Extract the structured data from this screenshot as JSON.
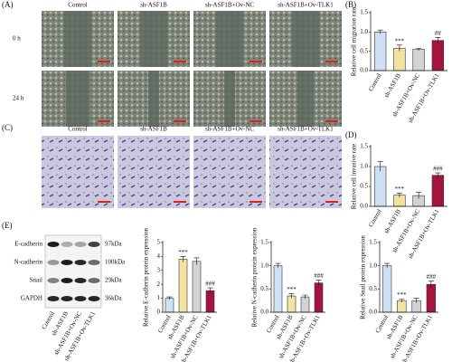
{
  "panel_labels": [
    "(A)",
    "(B)",
    "(C)",
    "(D)",
    "(E)"
  ],
  "groups": [
    "Control",
    "sh-ASF1B",
    "sh-ASF1B+Ov-NC",
    "sh-ASF1B+Ov-TLK1"
  ],
  "time_points": [
    "0 h",
    "24 h"
  ],
  "blot": {
    "proteins": [
      "E-cadherin",
      "N-cadherin",
      "Snail",
      "GAPDH"
    ],
    "sizes": [
      "97kDa",
      "100kDa",
      "29kDa",
      "36kDa"
    ]
  },
  "chart_data": [
    {
      "type": "bar",
      "ylabel": "Relative cell migration rate",
      "categories": [
        "Control",
        "sh-ASF1B",
        "sh-ASF1B+Ov-NC",
        "sh-ASF1B+Ov-TLK1"
      ],
      "values": [
        1.0,
        0.58,
        0.55,
        0.78
      ],
      "errors": [
        0.05,
        0.08,
        0.03,
        0.08
      ],
      "annotations": [
        null,
        "***",
        null,
        "##"
      ],
      "colors": [
        "#cfe0f5",
        "#f3e3a0",
        "#d3d3d3",
        "#a5143f"
      ],
      "ylim": [
        0,
        1.5
      ],
      "yticks": [
        {
          "value": 0,
          "label": "0.0"
        },
        {
          "value": 0.5,
          "label": "0.5"
        },
        {
          "value": 1,
          "label": "1.0"
        },
        {
          "value": 1.5,
          "label": "1.5"
        }
      ]
    },
    {
      "type": "bar",
      "ylabel": "Relative cell invasive rate",
      "categories": [
        "Control",
        "sh-ASF1B",
        "sh-ASF1B+Ov-NC",
        "sh-ASF1B+Ov-TLK1"
      ],
      "values": [
        1.0,
        0.28,
        0.27,
        0.78
      ],
      "errors": [
        0.12,
        0.05,
        0.08,
        0.06
      ],
      "annotations": [
        null,
        "***",
        null,
        "###"
      ],
      "colors": [
        "#cfe0f5",
        "#f3e3a0",
        "#d3d3d3",
        "#a5143f"
      ],
      "ylim": [
        0,
        1.5
      ],
      "yticks": [
        {
          "value": 0,
          "label": "0.0"
        },
        {
          "value": 0.5,
          "label": "0.5"
        },
        {
          "value": 1,
          "label": "1.0"
        },
        {
          "value": 1.5,
          "label": "1.5"
        }
      ]
    },
    {
      "type": "bar",
      "ylabel": "Relative E-cadherin protein expression",
      "categories": [
        "Control",
        "sh-ASF1B",
        "sh-ASF1B+Ov-NC",
        "sh-ASF1B+Ov-TLK1"
      ],
      "values": [
        1.0,
        3.8,
        3.65,
        1.55
      ],
      "errors": [
        0.1,
        0.2,
        0.25,
        0.2
      ],
      "annotations": [
        null,
        "***",
        null,
        "###"
      ],
      "colors": [
        "#cfe0f5",
        "#f3e3a0",
        "#d3d3d3",
        "#a5143f"
      ],
      "ylim": [
        0,
        5
      ],
      "yticks": [
        0,
        1,
        2,
        3,
        4,
        5
      ]
    },
    {
      "type": "bar",
      "ylabel": "Relative N-cadherin protein expression",
      "categories": [
        "Control",
        "sh-ASF1B",
        "sh-ASF1B+Ov-NC",
        "sh-ASF1B+Ov-TLK1"
      ],
      "values": [
        1.0,
        0.35,
        0.33,
        0.63
      ],
      "errors": [
        0.05,
        0.05,
        0.04,
        0.06
      ],
      "annotations": [
        null,
        "***",
        null,
        "###"
      ],
      "colors": [
        "#cfe0f5",
        "#f3e3a0",
        "#d3d3d3",
        "#a5143f"
      ],
      "ylim": [
        0,
        1.5
      ],
      "yticks": [
        {
          "value": 0,
          "label": "0.0"
        },
        {
          "value": 0.5,
          "label": "0.5"
        },
        {
          "value": 1,
          "label": "1.0"
        },
        {
          "value": 1.5,
          "label": "1.5"
        }
      ]
    },
    {
      "type": "bar",
      "ylabel": "Relative Snail protein expression",
      "categories": [
        "Control",
        "sh-ASF1B",
        "sh-ASF1B+Ov-NC",
        "sh-ASF1B+Ov-TLK1"
      ],
      "values": [
        1.0,
        0.25,
        0.25,
        0.6
      ],
      "errors": [
        0.05,
        0.03,
        0.05,
        0.07
      ],
      "annotations": [
        null,
        "***",
        null,
        "###"
      ],
      "colors": [
        "#cfe0f5",
        "#f3e3a0",
        "#d3d3d3",
        "#a5143f"
      ],
      "ylim": [
        0,
        1.5
      ],
      "yticks": [
        {
          "value": 0,
          "label": "0.0"
        },
        {
          "value": 0.5,
          "label": "0.5"
        },
        {
          "value": 1,
          "label": "1.0"
        },
        {
          "value": 1.5,
          "label": "1.5"
        }
      ]
    }
  ]
}
